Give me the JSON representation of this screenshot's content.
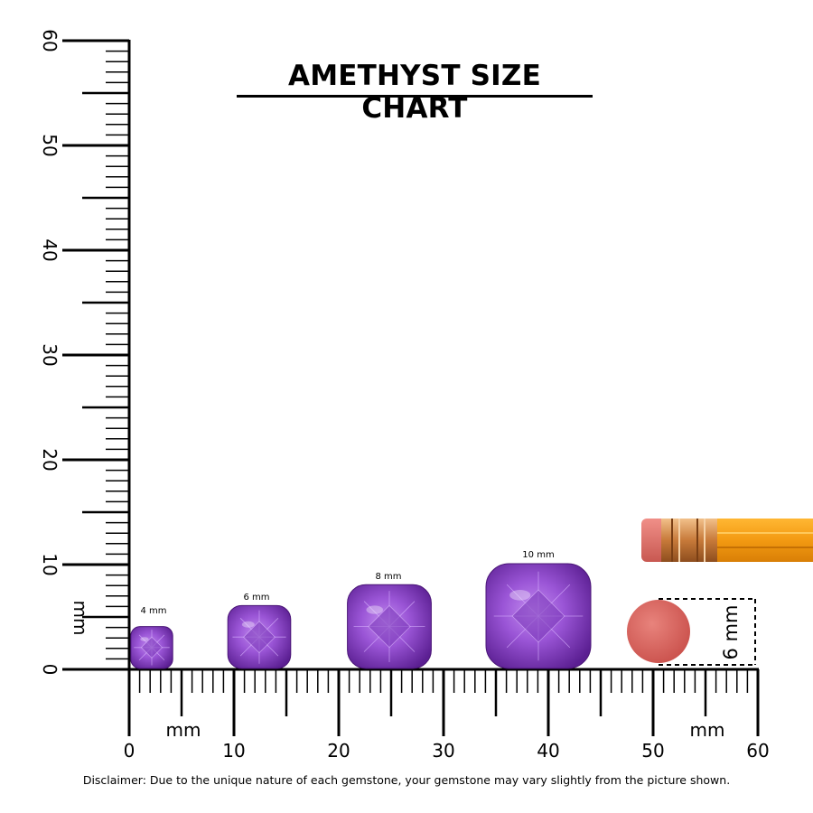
{
  "title": "AMETHYST SIZE CHART",
  "ruler": {
    "unit_label": "mm",
    "x_ticks": [
      "0",
      "10",
      "20",
      "30",
      "40",
      "50",
      "60"
    ],
    "y_ticks": [
      "0",
      "10",
      "20",
      "30",
      "40",
      "50",
      "60"
    ],
    "y_unit_label": "mm"
  },
  "gems": [
    {
      "label": "4 mm",
      "size_mm": 4
    },
    {
      "label": "6 mm",
      "size_mm": 6
    },
    {
      "label": "8 mm",
      "size_mm": 8
    },
    {
      "label": "10 mm",
      "size_mm": 10
    }
  ],
  "eraser_dimension": "6 mm",
  "disclaimer": "Disclaimer: Due to the unique nature of each gemstone, your gemstone may vary slightly from the picture shown.",
  "colors": {
    "amethyst": "#8a3fc7",
    "amethyst_dark": "#5a1f8f",
    "amethyst_light": "#b57be6",
    "eraser": "#d9605b",
    "pencil_body": "#f7a11a",
    "ferrule": "#d98a4a"
  }
}
